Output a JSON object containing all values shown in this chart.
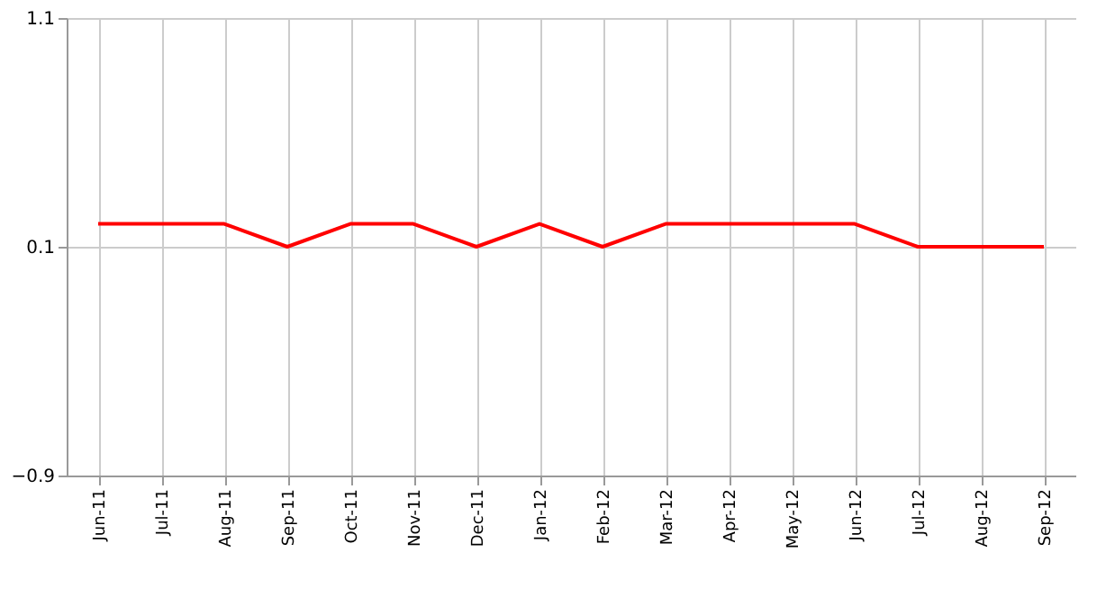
{
  "chart_data": {
    "type": "line",
    "categories": [
      "Jun-11",
      "Jul-11",
      "Aug-11",
      "Sep-11",
      "Oct-11",
      "Nov-11",
      "Dec-11",
      "Jan-12",
      "Feb-12",
      "Mar-12",
      "Apr-12",
      "May-12",
      "Jun-12",
      "Jul-12",
      "Aug-12",
      "Sep-12"
    ],
    "series": [
      {
        "color": "#ff0000",
        "values": [
          0.2,
          0.2,
          0.2,
          0.1,
          0.2,
          0.2,
          0.1,
          0.2,
          0.1,
          0.2,
          0.2,
          0.2,
          0.2,
          0.1,
          0.1,
          0.1
        ]
      }
    ],
    "ylim": [
      -0.9,
      1.1
    ],
    "yticks": [
      -0.9,
      0.1,
      1.1
    ],
    "grid": true,
    "marker": "none",
    "line_style": "solid"
  }
}
